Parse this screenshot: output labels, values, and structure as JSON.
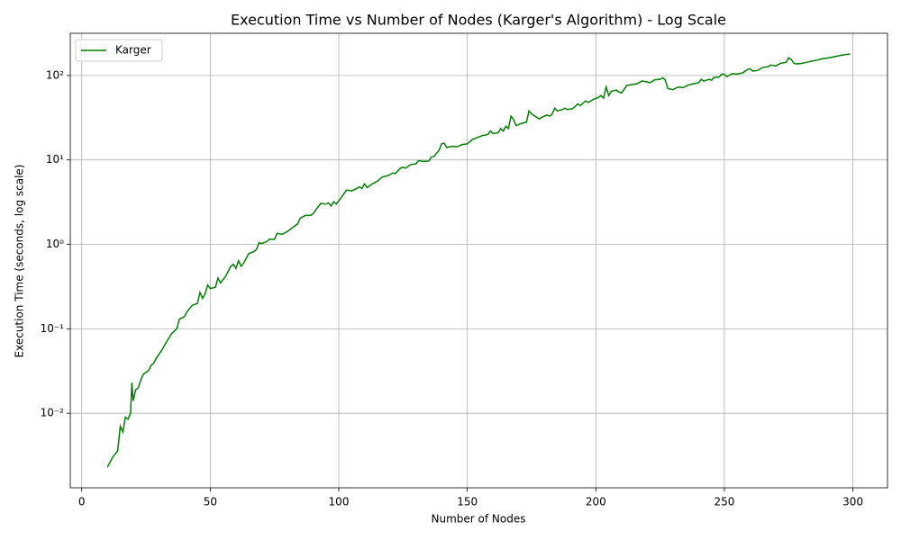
{
  "chart_data": {
    "type": "line",
    "title": "Execution Time vs Number of Nodes (Karger's Algorithm) - Log Scale",
    "xlabel": "Number of Nodes",
    "ylabel": "Execution Time (seconds, log scale)",
    "yscale": "log",
    "grid": true,
    "legend": "upper left",
    "xlim": [
      -4.45,
      313.45
    ],
    "ylim": [
      0.00131,
      316
    ],
    "xticks": [
      0,
      50,
      100,
      150,
      200,
      250,
      300
    ],
    "yticks": [
      {
        "value": 0.01,
        "label": "10⁻²"
      },
      {
        "value": 0.1,
        "label": "10⁻¹"
      },
      {
        "value": 1,
        "label": "10⁰"
      },
      {
        "value": 10,
        "label": "10¹"
      },
      {
        "value": 100,
        "label": "10²"
      }
    ],
    "x": [
      10,
      12,
      14,
      15,
      16,
      17,
      18,
      19,
      19.5,
      20,
      21,
      22,
      23,
      24,
      26,
      27,
      28,
      29,
      31,
      33,
      35,
      37,
      38,
      40,
      41,
      43,
      45,
      46,
      47,
      48,
      49,
      50,
      52,
      53,
      54,
      56,
      58,
      59,
      60,
      61,
      62,
      63,
      65,
      67,
      68,
      69,
      70,
      72,
      73,
      75,
      76,
      78,
      80,
      82,
      84,
      85,
      87,
      89,
      90,
      92,
      93,
      95,
      96,
      97,
      98,
      99,
      101,
      103,
      105,
      107,
      108,
      109,
      110,
      111,
      113,
      115,
      117,
      119,
      121,
      122,
      124,
      125,
      126,
      128,
      130,
      131,
      133,
      135,
      136,
      137,
      139,
      140,
      141,
      142,
      144,
      146,
      148,
      150,
      152,
      154,
      156,
      158,
      159,
      160,
      162,
      163,
      164,
      165,
      166,
      167,
      168,
      169,
      171,
      173,
      174,
      175,
      177,
      178,
      179,
      181,
      182,
      183,
      184,
      185,
      187,
      188,
      189,
      191,
      193,
      194,
      196,
      197,
      199,
      201,
      202,
      203,
      204,
      205,
      206,
      208,
      209,
      210,
      212,
      214,
      216,
      218,
      220,
      221,
      223,
      225,
      226,
      227,
      228,
      230,
      232,
      234,
      236,
      238,
      240,
      241,
      242,
      244,
      245,
      246,
      248,
      249,
      250,
      251,
      253,
      255,
      257,
      258,
      259,
      260,
      261,
      263,
      265,
      267,
      268,
      270,
      272,
      274,
      275,
      276,
      277,
      278,
      280,
      282,
      284,
      286,
      288,
      290,
      292,
      294,
      296,
      299
    ],
    "series": [
      {
        "name": "Karger",
        "color": "#008000",
        "values": [
          0.0023,
          0.003,
          0.0036,
          0.007,
          0.006,
          0.009,
          0.0085,
          0.01,
          0.023,
          0.014,
          0.019,
          0.02,
          0.025,
          0.029,
          0.032,
          0.037,
          0.039,
          0.045,
          0.055,
          0.07,
          0.088,
          0.1,
          0.13,
          0.14,
          0.16,
          0.19,
          0.2,
          0.27,
          0.23,
          0.26,
          0.33,
          0.3,
          0.31,
          0.4,
          0.35,
          0.42,
          0.55,
          0.58,
          0.52,
          0.64,
          0.55,
          0.6,
          0.78,
          0.82,
          0.87,
          1.05,
          1.02,
          1.08,
          1.15,
          1.15,
          1.35,
          1.32,
          1.42,
          1.58,
          1.75,
          2.05,
          2.2,
          2.2,
          2.3,
          2.8,
          3.05,
          3.0,
          3.1,
          2.85,
          3.2,
          3.0,
          3.6,
          4.4,
          4.3,
          4.6,
          4.8,
          4.6,
          5.2,
          4.7,
          5.2,
          5.6,
          6.3,
          6.5,
          7.0,
          6.9,
          8.0,
          8.2,
          8.0,
          8.8,
          9.0,
          9.8,
          9.6,
          9.7,
          10.8,
          11.0,
          13.0,
          15.5,
          15.8,
          14.0,
          14.5,
          14.3,
          15.2,
          15.5,
          17.5,
          18.5,
          19.5,
          20.0,
          22.0,
          20.5,
          21.0,
          23.5,
          22.0,
          25.0,
          23.5,
          33.0,
          30.0,
          25.5,
          27.0,
          28.0,
          38.0,
          35.0,
          32.0,
          30.5,
          32.0,
          34.0,
          33.0,
          35.0,
          41.0,
          38.0,
          39.5,
          41.0,
          39.5,
          40.5,
          46.0,
          44.0,
          50.0,
          48.0,
          52.0,
          55.0,
          58.0,
          54.0,
          73.0,
          58.0,
          65.0,
          67.0,
          64.0,
          62.0,
          76.0,
          78.0,
          80.0,
          86.0,
          84.0,
          82.0,
          89.0,
          90.0,
          94.0,
          88.0,
          70.0,
          68.0,
          73.0,
          72.0,
          77.0,
          80.0,
          82.0,
          90.0,
          86.0,
          90.0,
          88.0,
          95.0,
          96.0,
          104,
          103,
          97,
          105,
          104,
          107,
          112,
          118,
          120,
          113,
          115,
          125,
          127,
          133,
          130,
          140,
          143,
          162,
          155,
          140,
          137,
          139,
          143,
          148,
          152,
          158,
          161,
          165,
          170,
          175,
          180
        ]
      }
    ]
  }
}
